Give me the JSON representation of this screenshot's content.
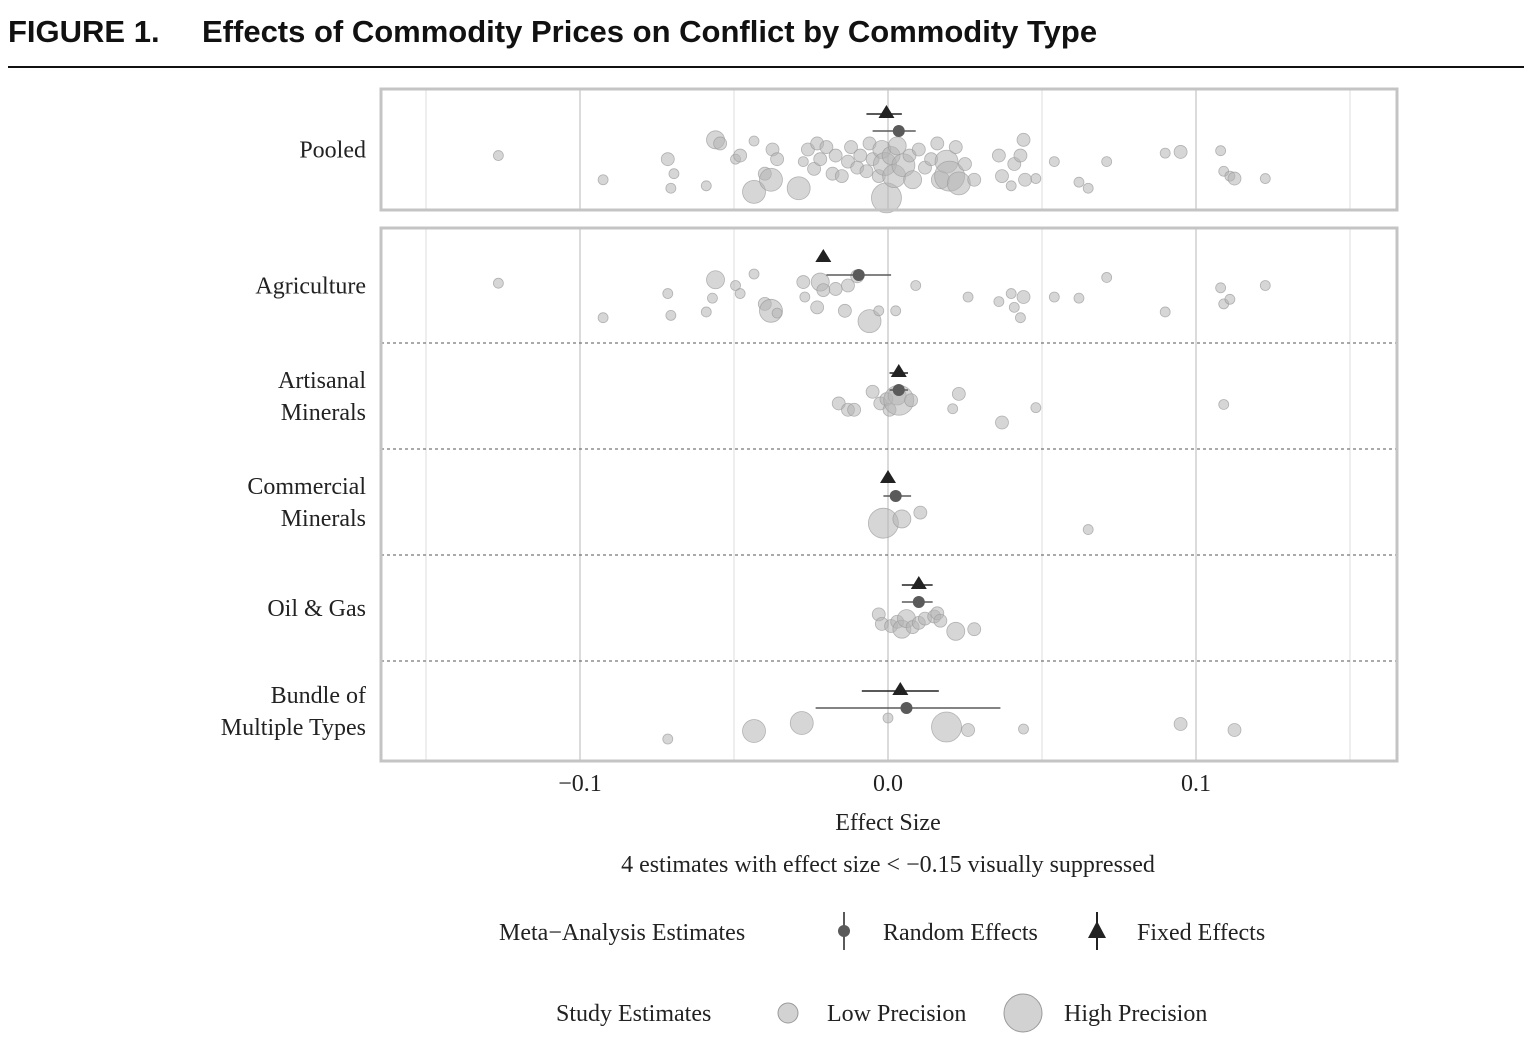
{
  "figure": {
    "label": "FIGURE 1.",
    "title": "Effects of Commodity Prices on Conflict by Commodity Type"
  },
  "chart_data": {
    "type": "scatter",
    "title": "Effects of Commodity Prices on Conflict by Commodity Type",
    "xlabel": "Effect Size",
    "ylabel": "",
    "xlim": [
      -0.15,
      0.165
    ],
    "x_ticks": [
      -0.1,
      0.0,
      0.1
    ],
    "x_tick_labels": [
      "−0.1",
      "0.0",
      "0.1"
    ],
    "grid": true,
    "note": "4 estimates with effect size < −0.15 visually suppressed",
    "legend": {
      "position": "bottom",
      "meta_title": "Meta−Analysis Estimates",
      "random_label": "Random Effects",
      "fixed_label": "Fixed Effects",
      "study_title": "Study Estimates",
      "low_label": "Low Precision",
      "high_label": "High Precision"
    },
    "colors": {
      "study": "#b4b4b4",
      "study_stroke": "#9a9a9a",
      "random": "#5a5a5a",
      "fixed": "#222222",
      "grid": "#cfcfcf",
      "frame": "#c4c4c4",
      "separator": "#555555"
    },
    "panels": [
      {
        "label": "Pooled",
        "label_lines": [
          "Pooled"
        ],
        "fixed": {
          "est": -0.0005,
          "lo": -0.007,
          "hi": 0.0045
        },
        "random": {
          "est": 0.0035,
          "lo": -0.005,
          "hi": 0.009
        },
        "studies": [
          {
            "x": -0.1265,
            "j": 0.55,
            "s": 1
          },
          {
            "x": -0.0925,
            "j": 0.75,
            "s": 1
          },
          {
            "x": -0.0715,
            "j": 0.58,
            "s": 2
          },
          {
            "x": -0.0705,
            "j": 0.82,
            "s": 1
          },
          {
            "x": -0.0695,
            "j": 0.7,
            "s": 1
          },
          {
            "x": -0.059,
            "j": 0.8,
            "s": 1
          },
          {
            "x": -0.056,
            "j": 0.42,
            "s": 3
          },
          {
            "x": -0.0545,
            "j": 0.45,
            "s": 2
          },
          {
            "x": -0.0495,
            "j": 0.58,
            "s": 1
          },
          {
            "x": -0.048,
            "j": 0.55,
            "s": 2
          },
          {
            "x": -0.0435,
            "j": 0.43,
            "s": 1
          },
          {
            "x": -0.0435,
            "j": 0.85,
            "s": 4
          },
          {
            "x": -0.04,
            "j": 0.7,
            "s": 2
          },
          {
            "x": -0.038,
            "j": 0.75,
            "s": 4
          },
          {
            "x": -0.0375,
            "j": 0.5,
            "s": 2
          },
          {
            "x": -0.036,
            "j": 0.58,
            "s": 2
          },
          {
            "x": -0.029,
            "j": 0.82,
            "s": 4
          },
          {
            "x": -0.0275,
            "j": 0.6,
            "s": 1
          },
          {
            "x": -0.026,
            "j": 0.5,
            "s": 2
          },
          {
            "x": -0.024,
            "j": 0.66,
            "s": 2
          },
          {
            "x": -0.023,
            "j": 0.45,
            "s": 2
          },
          {
            "x": -0.022,
            "j": 0.58,
            "s": 2
          },
          {
            "x": -0.02,
            "j": 0.48,
            "s": 2
          },
          {
            "x": -0.018,
            "j": 0.7,
            "s": 2
          },
          {
            "x": -0.017,
            "j": 0.55,
            "s": 2
          },
          {
            "x": -0.015,
            "j": 0.72,
            "s": 2
          },
          {
            "x": -0.013,
            "j": 0.6,
            "s": 2
          },
          {
            "x": -0.012,
            "j": 0.48,
            "s": 2
          },
          {
            "x": -0.01,
            "j": 0.65,
            "s": 2
          },
          {
            "x": -0.009,
            "j": 0.55,
            "s": 2
          },
          {
            "x": -0.007,
            "j": 0.68,
            "s": 2
          },
          {
            "x": -0.006,
            "j": 0.45,
            "s": 2
          },
          {
            "x": -0.005,
            "j": 0.58,
            "s": 2
          },
          {
            "x": -0.003,
            "j": 0.72,
            "s": 2
          },
          {
            "x": -0.002,
            "j": 0.5,
            "s": 3
          },
          {
            "x": -0.001,
            "j": 0.62,
            "s": 4
          },
          {
            "x": -0.0005,
            "j": 0.9,
            "s": 5
          },
          {
            "x": 0.001,
            "j": 0.55,
            "s": 3
          },
          {
            "x": 0.002,
            "j": 0.72,
            "s": 4
          },
          {
            "x": 0.003,
            "j": 0.47,
            "s": 3
          },
          {
            "x": 0.005,
            "j": 0.63,
            "s": 4
          },
          {
            "x": 0.007,
            "j": 0.55,
            "s": 2
          },
          {
            "x": 0.008,
            "j": 0.75,
            "s": 3
          },
          {
            "x": 0.01,
            "j": 0.5,
            "s": 2
          },
          {
            "x": 0.012,
            "j": 0.65,
            "s": 2
          },
          {
            "x": 0.014,
            "j": 0.58,
            "s": 2
          },
          {
            "x": 0.016,
            "j": 0.45,
            "s": 2
          },
          {
            "x": 0.017,
            "j": 0.75,
            "s": 3
          },
          {
            "x": 0.019,
            "j": 0.6,
            "s": 4
          },
          {
            "x": 0.02,
            "j": 0.72,
            "s": 5
          },
          {
            "x": 0.022,
            "j": 0.48,
            "s": 2
          },
          {
            "x": 0.023,
            "j": 0.78,
            "s": 4
          },
          {
            "x": 0.025,
            "j": 0.62,
            "s": 2
          },
          {
            "x": 0.028,
            "j": 0.75,
            "s": 2
          },
          {
            "x": 0.036,
            "j": 0.55,
            "s": 2
          },
          {
            "x": 0.037,
            "j": 0.72,
            "s": 2
          },
          {
            "x": 0.04,
            "j": 0.8,
            "s": 1
          },
          {
            "x": 0.041,
            "j": 0.62,
            "s": 2
          },
          {
            "x": 0.043,
            "j": 0.55,
            "s": 2
          },
          {
            "x": 0.044,
            "j": 0.42,
            "s": 2
          },
          {
            "x": 0.0445,
            "j": 0.75,
            "s": 2
          },
          {
            "x": 0.048,
            "j": 0.74,
            "s": 1
          },
          {
            "x": 0.054,
            "j": 0.6,
            "s": 1
          },
          {
            "x": 0.062,
            "j": 0.77,
            "s": 1
          },
          {
            "x": 0.065,
            "j": 0.82,
            "s": 1
          },
          {
            "x": 0.071,
            "j": 0.6,
            "s": 1
          },
          {
            "x": 0.09,
            "j": 0.53,
            "s": 1
          },
          {
            "x": 0.095,
            "j": 0.52,
            "s": 2
          },
          {
            "x": 0.108,
            "j": 0.51,
            "s": 1
          },
          {
            "x": 0.109,
            "j": 0.68,
            "s": 1
          },
          {
            "x": 0.111,
            "j": 0.72,
            "s": 1
          },
          {
            "x": 0.1125,
            "j": 0.74,
            "s": 2
          },
          {
            "x": 0.1225,
            "j": 0.74,
            "s": 1
          }
        ]
      },
      {
        "label": "Agriculture",
        "label_lines": [
          "Agriculture"
        ],
        "fixed": {
          "est": -0.021,
          "lo": -0.0225,
          "hi": -0.0195
        },
        "random": {
          "est": -0.0095,
          "lo": -0.02,
          "hi": 0.001
        },
        "studies": [
          {
            "x": -0.1265,
            "j": 0.48,
            "s": 1
          },
          {
            "x": -0.0925,
            "j": 0.78,
            "s": 1
          },
          {
            "x": -0.0715,
            "j": 0.57,
            "s": 1
          },
          {
            "x": -0.0705,
            "j": 0.76,
            "s": 1
          },
          {
            "x": -0.059,
            "j": 0.73,
            "s": 1
          },
          {
            "x": -0.057,
            "j": 0.61,
            "s": 1
          },
          {
            "x": -0.056,
            "j": 0.45,
            "s": 3
          },
          {
            "x": -0.0495,
            "j": 0.5,
            "s": 1
          },
          {
            "x": -0.048,
            "j": 0.57,
            "s": 1
          },
          {
            "x": -0.0435,
            "j": 0.4,
            "s": 1
          },
          {
            "x": -0.04,
            "j": 0.66,
            "s": 2
          },
          {
            "x": -0.038,
            "j": 0.72,
            "s": 4
          },
          {
            "x": -0.036,
            "j": 0.74,
            "s": 1
          },
          {
            "x": -0.0275,
            "j": 0.47,
            "s": 2
          },
          {
            "x": -0.027,
            "j": 0.6,
            "s": 1
          },
          {
            "x": -0.023,
            "j": 0.69,
            "s": 2
          },
          {
            "x": -0.022,
            "j": 0.47,
            "s": 3
          },
          {
            "x": -0.021,
            "j": 0.54,
            "s": 2
          },
          {
            "x": -0.017,
            "j": 0.53,
            "s": 2
          },
          {
            "x": -0.014,
            "j": 0.72,
            "s": 2
          },
          {
            "x": -0.013,
            "j": 0.5,
            "s": 2
          },
          {
            "x": -0.01,
            "j": 0.42,
            "s": 2
          },
          {
            "x": -0.006,
            "j": 0.81,
            "s": 4
          },
          {
            "x": -0.003,
            "j": 0.72,
            "s": 1
          },
          {
            "x": 0.0025,
            "j": 0.72,
            "s": 1
          },
          {
            "x": 0.009,
            "j": 0.5,
            "s": 1
          },
          {
            "x": 0.026,
            "j": 0.6,
            "s": 1
          },
          {
            "x": 0.036,
            "j": 0.64,
            "s": 1
          },
          {
            "x": 0.04,
            "j": 0.57,
            "s": 1
          },
          {
            "x": 0.041,
            "j": 0.69,
            "s": 1
          },
          {
            "x": 0.043,
            "j": 0.78,
            "s": 1
          },
          {
            "x": 0.044,
            "j": 0.6,
            "s": 2
          },
          {
            "x": 0.054,
            "j": 0.6,
            "s": 1
          },
          {
            "x": 0.062,
            "j": 0.61,
            "s": 1
          },
          {
            "x": 0.071,
            "j": 0.43,
            "s": 1
          },
          {
            "x": 0.09,
            "j": 0.73,
            "s": 1
          },
          {
            "x": 0.108,
            "j": 0.52,
            "s": 1
          },
          {
            "x": 0.109,
            "j": 0.66,
            "s": 1
          },
          {
            "x": 0.111,
            "j": 0.62,
            "s": 1
          },
          {
            "x": 0.1225,
            "j": 0.5,
            "s": 1
          }
        ]
      },
      {
        "label": "Artisanal Minerals",
        "label_lines": [
          "Artisanal",
          "Minerals"
        ],
        "fixed": {
          "est": 0.0035,
          "lo": 0.0005,
          "hi": 0.0065
        },
        "random": {
          "est": 0.0035,
          "lo": 0.0005,
          "hi": 0.0065
        },
        "studies": [
          {
            "x": -0.016,
            "j": 0.57,
            "s": 2
          },
          {
            "x": -0.013,
            "j": 0.63,
            "s": 2
          },
          {
            "x": -0.011,
            "j": 0.63,
            "s": 2
          },
          {
            "x": -0.005,
            "j": 0.46,
            "s": 2
          },
          {
            "x": -0.0025,
            "j": 0.57,
            "s": 2
          },
          {
            "x": -0.0005,
            "j": 0.53,
            "s": 2
          },
          {
            "x": 0.0005,
            "j": 0.63,
            "s": 2
          },
          {
            "x": 0.003,
            "j": 0.5,
            "s": 3
          },
          {
            "x": 0.0035,
            "j": 0.54,
            "s": 5
          },
          {
            "x": 0.0075,
            "j": 0.54,
            "s": 2
          },
          {
            "x": 0.021,
            "j": 0.62,
            "s": 1
          },
          {
            "x": 0.023,
            "j": 0.48,
            "s": 2
          },
          {
            "x": 0.037,
            "j": 0.75,
            "s": 2
          },
          {
            "x": 0.048,
            "j": 0.61,
            "s": 1
          },
          {
            "x": 0.109,
            "j": 0.58,
            "s": 1
          }
        ]
      },
      {
        "label": "Commercial Minerals",
        "label_lines": [
          "Commercial",
          "Minerals"
        ],
        "fixed": {
          "est": 0.0,
          "lo": -0.0015,
          "hi": 0.0015
        },
        "random": {
          "est": 0.0025,
          "lo": -0.0015,
          "hi": 0.0075
        },
        "studies": [
          {
            "x": -0.0015,
            "j": 0.7,
            "s": 5
          },
          {
            "x": 0.0045,
            "j": 0.66,
            "s": 3
          },
          {
            "x": 0.0105,
            "j": 0.6,
            "s": 2
          },
          {
            "x": 0.065,
            "j": 0.76,
            "s": 1
          }
        ]
      },
      {
        "label": "Oil & Gas",
        "label_lines": [
          "Oil & Gas"
        ],
        "fixed": {
          "est": 0.01,
          "lo": 0.0045,
          "hi": 0.0145
        },
        "random": {
          "est": 0.01,
          "lo": 0.0045,
          "hi": 0.0145
        },
        "studies": [
          {
            "x": -0.003,
            "j": 0.56,
            "s": 2
          },
          {
            "x": -0.002,
            "j": 0.65,
            "s": 2
          },
          {
            "x": 0.001,
            "j": 0.67,
            "s": 2
          },
          {
            "x": 0.003,
            "j": 0.63,
            "s": 2
          },
          {
            "x": 0.0045,
            "j": 0.7,
            "s": 3
          },
          {
            "x": 0.006,
            "j": 0.6,
            "s": 3
          },
          {
            "x": 0.008,
            "j": 0.68,
            "s": 2
          },
          {
            "x": 0.01,
            "j": 0.64,
            "s": 2
          },
          {
            "x": 0.012,
            "j": 0.6,
            "s": 2
          },
          {
            "x": 0.015,
            "j": 0.58,
            "s": 2
          },
          {
            "x": 0.016,
            "j": 0.55,
            "s": 2
          },
          {
            "x": 0.017,
            "j": 0.62,
            "s": 2
          },
          {
            "x": 0.022,
            "j": 0.72,
            "s": 3
          },
          {
            "x": 0.028,
            "j": 0.7,
            "s": 2
          }
        ]
      },
      {
        "label": "Bundle of Multiple Types",
        "label_lines": [
          "Bundle of",
          "Multiple Types"
        ],
        "fixed": {
          "est": 0.004,
          "lo": -0.0085,
          "hi": 0.0165
        },
        "random": {
          "est": 0.006,
          "lo": -0.0235,
          "hi": 0.0365
        },
        "studies": [
          {
            "x": -0.0715,
            "j": 0.78,
            "s": 1
          },
          {
            "x": -0.0435,
            "j": 0.7,
            "s": 4
          },
          {
            "x": -0.028,
            "j": 0.62,
            "s": 4
          },
          {
            "x": 0.0,
            "j": 0.57,
            "s": 1
          },
          {
            "x": 0.019,
            "j": 0.66,
            "s": 5
          },
          {
            "x": 0.026,
            "j": 0.69,
            "s": 2
          },
          {
            "x": 0.044,
            "j": 0.68,
            "s": 1
          },
          {
            "x": 0.095,
            "j": 0.63,
            "s": 2
          },
          {
            "x": 0.1125,
            "j": 0.69,
            "s": 2
          }
        ]
      }
    ]
  }
}
